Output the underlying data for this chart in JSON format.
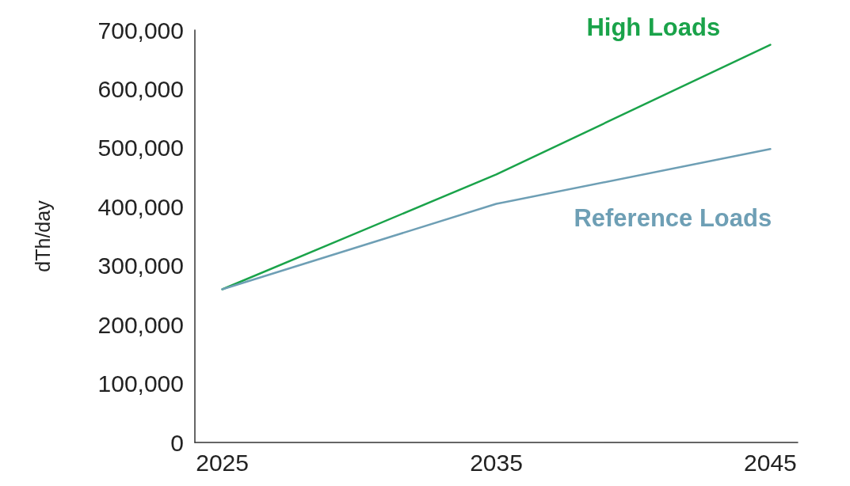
{
  "chart_data": {
    "type": "line",
    "ylabel": "dTh/day",
    "x": [
      2025,
      2035,
      2045
    ],
    "xlim": [
      2024,
      2046
    ],
    "xticks": [
      2025,
      2035,
      2045
    ],
    "ylim": [
      0,
      700000
    ],
    "yticks": [
      0,
      {
        "value": 100000,
        "label": "100,000"
      },
      {
        "value": 200000,
        "label": "200,000"
      },
      {
        "value": 300000,
        "label": "300,000"
      },
      {
        "value": 400000,
        "label": "400,000"
      },
      {
        "value": 500000,
        "label": "500,000"
      },
      {
        "value": 600000,
        "label": "600,000"
      },
      {
        "value": 700000,
        "label": "700,000"
      }
    ],
    "grid": false,
    "legend": false,
    "marker": "none",
    "line_style": "solid",
    "series": [
      {
        "name": "High Loads",
        "color": "#1aa34a",
        "values": [
          260000,
          455000,
          675000
        ]
      },
      {
        "name": "Reference Loads",
        "color": "#6e9fb5",
        "values": [
          260000,
          405000,
          498000
        ]
      }
    ]
  }
}
